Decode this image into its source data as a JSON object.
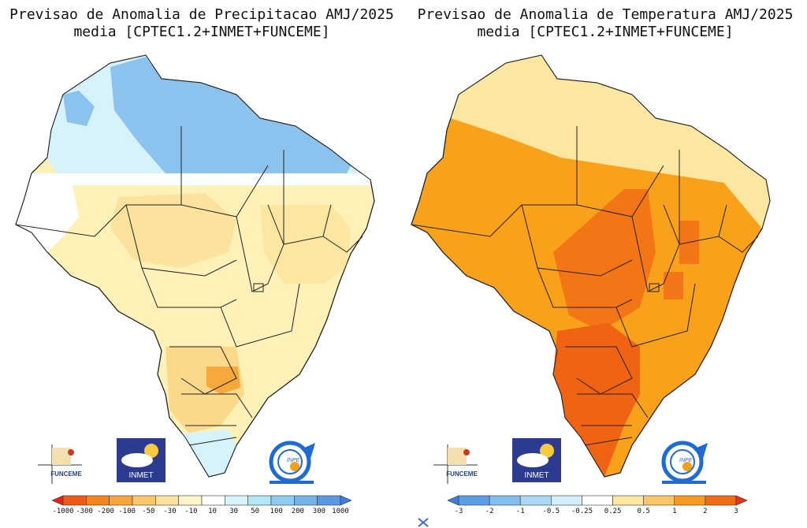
{
  "panels": [
    {
      "id": "precip",
      "title_line1": "Previsao de Anomalia de Precipitacao AMJ/2025",
      "title_line2": "media [CPTEC1.2+INMET+FUNCEME]",
      "colorbar": {
        "labels": [
          "-1000",
          "-300",
          "-200",
          "-100",
          "-50",
          "-30",
          "-10",
          "10",
          "30",
          "50",
          "100",
          "200",
          "300",
          "1000"
        ],
        "colors": [
          "#e8231b",
          "#f05a16",
          "#f6841e",
          "#f9a43a",
          "#fbc66a",
          "#fde29d",
          "#fff6c9",
          "#ffffff",
          "#d8f4fb",
          "#b3e6f6",
          "#8dcdf1",
          "#72b3ec",
          "#5a98e6",
          "#3f7ed9"
        ],
        "state_colors": {
          "north_west": "#ffffff",
          "north_central": "#b7e3f5",
          "north_east": "#8cc2ee",
          "center": "#fff1b8",
          "northeast": "#fde6a0",
          "south": "#fbd88a",
          "south_anomaly": "#f7a83a",
          "far_south": "#d6f2fb"
        }
      },
      "logos": {
        "funceme": "FUNCEME",
        "inmet": "INMET",
        "inpe": "INPE"
      }
    },
    {
      "id": "temp",
      "title_line1": "Previsao de Anomalia de Temperatura AMJ/2025",
      "title_line2": "media [CPTEC1.2+INMET+FUNCEME]",
      "colorbar": {
        "labels": [
          "-3",
          "-2",
          "-1",
          "-0.5",
          "-0.25",
          "0.25",
          "0.5",
          "1",
          "2",
          "3"
        ],
        "colors": [
          "#3e7fdc",
          "#5b9de6",
          "#82bdf0",
          "#a9d7f5",
          "#d4eefa",
          "#ffffff",
          "#fde6a0",
          "#fbc66a",
          "#f79a1e",
          "#f26a12",
          "#e8341a"
        ],
        "state_colors": {
          "north": "#f9a11b",
          "north_border": "#fde6a0",
          "east": "#f7a21f",
          "center_hot": "#f47515",
          "south_hot": "#f06312"
        }
      },
      "logos": {
        "funceme": "FUNCEME",
        "inmet": "INMET",
        "inpe": "INPE"
      }
    }
  ]
}
